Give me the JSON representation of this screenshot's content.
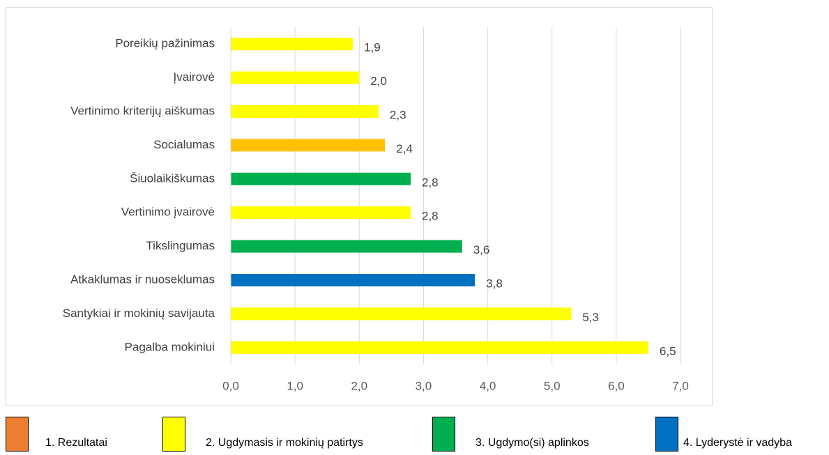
{
  "chart_data": {
    "type": "barh",
    "categories": [
      "Poreikių pažinimas",
      "Įvairovė",
      "Vertinimo kriterijų aiškumas",
      "Socialumas",
      "Šiuolaikiškumas",
      "Vertinimo įvairovė",
      "Tikslingumas",
      "Atkaklumas ir nuoseklumas",
      "Santykiai ir mokinių savijauta",
      "Pagalba mokiniui"
    ],
    "values": [
      1.9,
      2.0,
      2.3,
      2.4,
      2.8,
      2.8,
      3.6,
      3.8,
      5.3,
      6.5
    ],
    "value_labels": [
      "1,9",
      "2,0",
      "2,3",
      "2,4",
      "2,8",
      "2,8",
      "3,6",
      "3,8",
      "5,3",
      "6,5"
    ],
    "colors": [
      "#FFFF00",
      "#FFFF00",
      "#FFFF00",
      "#FFC000",
      "#00B050",
      "#FFFF00",
      "#00B050",
      "#0070C0",
      "#FFFF00",
      "#FFFF00"
    ],
    "xlim": [
      0,
      7
    ],
    "xticks": [
      {
        "value": 0,
        "label": "0,0"
      },
      {
        "value": 1,
        "label": "1,0"
      },
      {
        "value": 2,
        "label": "2,0"
      },
      {
        "value": 3,
        "label": "3,0"
      },
      {
        "value": 4,
        "label": "4,0"
      },
      {
        "value": 5,
        "label": "5,0"
      },
      {
        "value": 6,
        "label": "6,0"
      },
      {
        "value": 7,
        "label": "7,0"
      }
    ],
    "grid": true,
    "legend": [
      {
        "label": "1. Rezultatai",
        "color": "#ED7D31"
      },
      {
        "label": "2. Ugdymasis ir mokinių patirtys",
        "color": "#FFFF00"
      },
      {
        "label": "3. Ugdymo(si) aplinkos",
        "color": "#00B050"
      },
      {
        "label": "4. Lyderystė ir vadyba",
        "color": "#0070C0"
      }
    ]
  }
}
